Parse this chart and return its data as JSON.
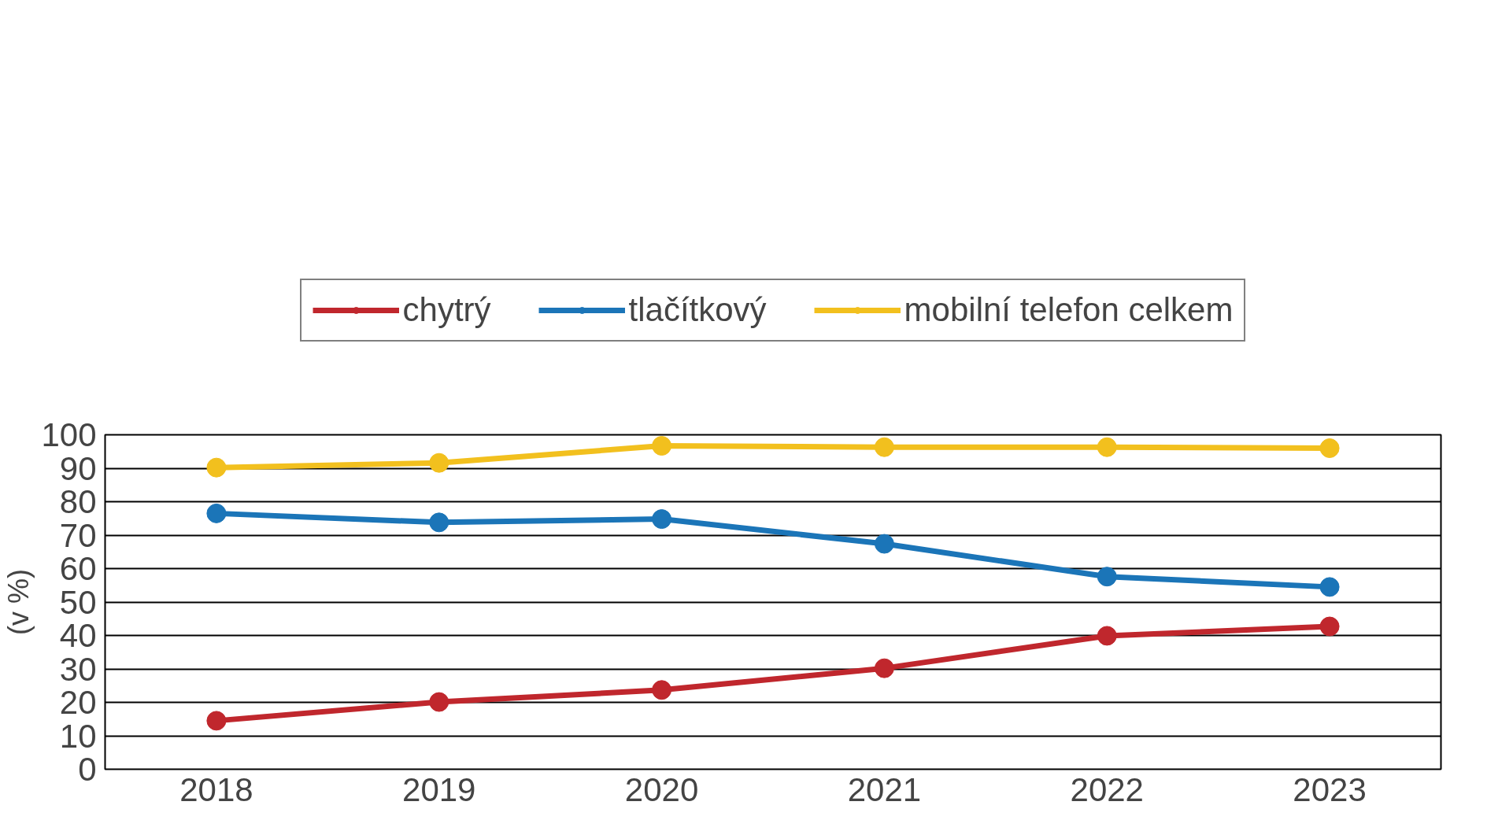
{
  "chart_data": {
    "type": "line",
    "ylabel": "(v %)",
    "categories": [
      "2018",
      "2019",
      "2020",
      "2021",
      "2022",
      "2023"
    ],
    "series": [
      {
        "name": "chytrý",
        "color": "#c0272d",
        "values": [
          14.5,
          20.1,
          23.7,
          30.2,
          39.9,
          42.7
        ]
      },
      {
        "name": "tlačítkový",
        "color": "#1b75b8",
        "values": [
          76.5,
          73.8,
          74.8,
          67.4,
          57.6,
          54.5
        ]
      },
      {
        "name": "mobilní telefon celkem",
        "color": "#f2c01e",
        "values": [
          90.2,
          91.6,
          96.7,
          96.3,
          96.3,
          96.0
        ]
      }
    ],
    "ylim": [
      0,
      100
    ],
    "yticks": [
      0,
      10,
      20,
      30,
      40,
      50,
      60,
      70,
      80,
      90,
      100
    ],
    "grid": "y",
    "legend": "top",
    "marker": "circle",
    "line_style": "solid"
  }
}
